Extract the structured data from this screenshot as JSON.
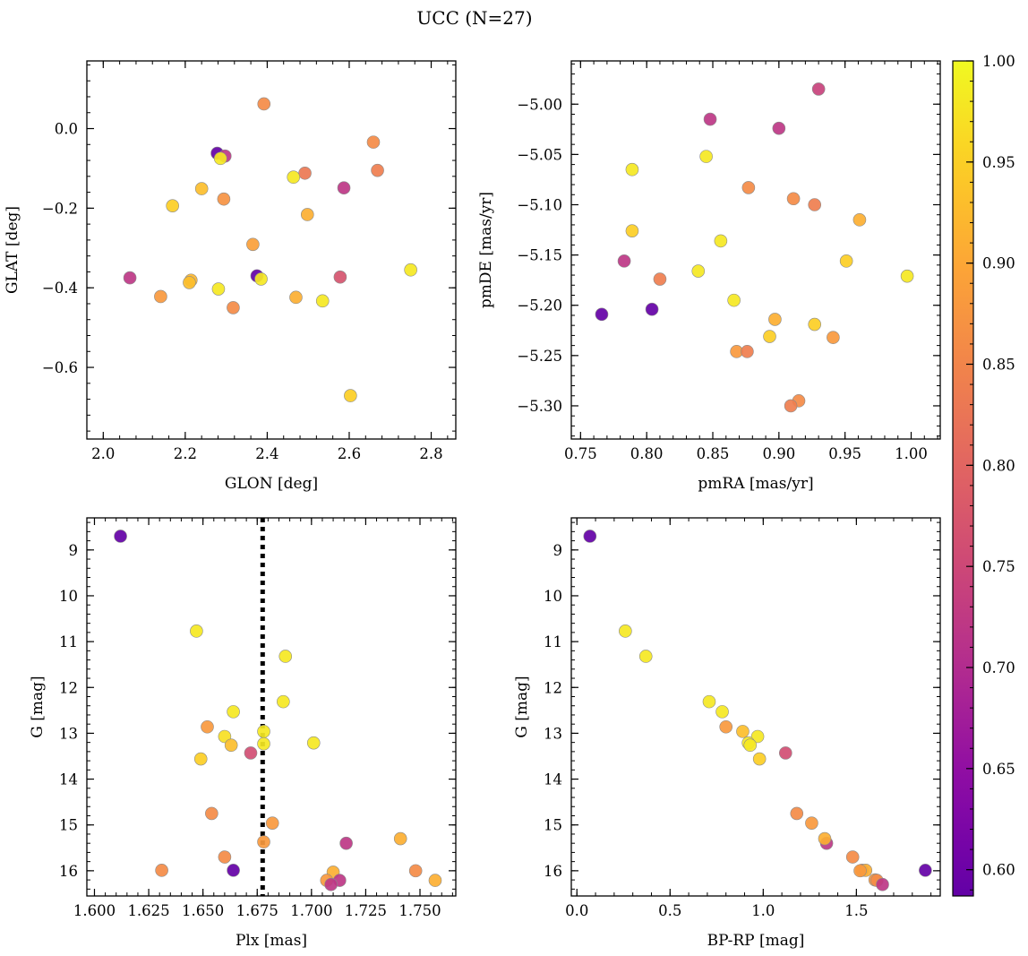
{
  "title": "UCC (N=27)",
  "chart_data": [
    {
      "type": "scatter",
      "xlabel": "GLON [deg]",
      "ylabel": "GLAT [deg]",
      "xlim": [
        1.96,
        2.86
      ],
      "ylim": [
        -0.78,
        0.17
      ],
      "xticks": [
        2.0,
        2.2,
        2.4,
        2.6,
        2.8
      ],
      "xtick_labels": [
        "2.0",
        "2.2",
        "2.4",
        "2.6",
        "2.8"
      ],
      "yticks": [
        0.0,
        -0.2,
        -0.4,
        -0.6
      ],
      "ytick_labels": [
        "0.0",
        "−0.2",
        "−0.4",
        "−0.6"
      ],
      "y_inverted": false,
      "points": [
        {
          "x": 2.392,
          "y": 0.062,
          "c": 0.86
        },
        {
          "x": 2.659,
          "y": -0.034,
          "c": 0.86
        },
        {
          "x": 2.278,
          "y": -0.062,
          "c": 0.59
        },
        {
          "x": 2.297,
          "y": -0.069,
          "c": 0.72
        },
        {
          "x": 2.286,
          "y": -0.075,
          "c": 0.98
        },
        {
          "x": 2.669,
          "y": -0.105,
          "c": 0.84
        },
        {
          "x": 2.492,
          "y": -0.112,
          "c": 0.83
        },
        {
          "x": 2.464,
          "y": -0.122,
          "c": 0.98
        },
        {
          "x": 2.587,
          "y": -0.149,
          "c": 0.72
        },
        {
          "x": 2.24,
          "y": -0.151,
          "c": 0.93
        },
        {
          "x": 2.294,
          "y": -0.177,
          "c": 0.87
        },
        {
          "x": 2.169,
          "y": -0.194,
          "c": 0.95
        },
        {
          "x": 2.498,
          "y": -0.216,
          "c": 0.91
        },
        {
          "x": 2.365,
          "y": -0.291,
          "c": 0.89
        },
        {
          "x": 2.75,
          "y": -0.355,
          "c": 0.98
        },
        {
          "x": 2.375,
          "y": -0.37,
          "c": 0.59
        },
        {
          "x": 2.065,
          "y": -0.375,
          "c": 0.72
        },
        {
          "x": 2.578,
          "y": -0.373,
          "c": 0.77
        },
        {
          "x": 2.385,
          "y": -0.378,
          "c": 0.98
        },
        {
          "x": 2.214,
          "y": -0.381,
          "c": 0.92
        },
        {
          "x": 2.21,
          "y": -0.387,
          "c": 0.93
        },
        {
          "x": 2.281,
          "y": -0.403,
          "c": 0.98
        },
        {
          "x": 2.14,
          "y": -0.422,
          "c": 0.88
        },
        {
          "x": 2.47,
          "y": -0.424,
          "c": 0.91
        },
        {
          "x": 2.535,
          "y": -0.433,
          "c": 0.98
        },
        {
          "x": 2.317,
          "y": -0.45,
          "c": 0.86
        },
        {
          "x": 2.603,
          "y": -0.671,
          "c": 0.95
        }
      ]
    },
    {
      "type": "scatter",
      "xlabel": "pmRA [mas/yr]",
      "ylabel": "pmDE [mas/yr]",
      "xlim": [
        0.743,
        1.022
      ],
      "ylim": [
        -5.333,
        -4.957
      ],
      "xticks": [
        0.75,
        0.8,
        0.85,
        0.9,
        0.95,
        1.0
      ],
      "xtick_labels": [
        "0.75",
        "0.80",
        "0.85",
        "0.90",
        "0.95",
        "1.00"
      ],
      "yticks": [
        -5.0,
        -5.05,
        -5.1,
        -5.15,
        -5.2,
        -5.25,
        -5.3
      ],
      "ytick_labels": [
        "−5.00",
        "−5.05",
        "−5.10",
        "−5.15",
        "−5.20",
        "−5.25",
        "−5.30"
      ],
      "y_inverted": false,
      "points": [
        {
          "x": 0.93,
          "y": -4.985,
          "c": 0.74
        },
        {
          "x": 0.848,
          "y": -5.015,
          "c": 0.72
        },
        {
          "x": 0.9,
          "y": -5.024,
          "c": 0.72
        },
        {
          "x": 0.845,
          "y": -5.052,
          "c": 0.98
        },
        {
          "x": 0.789,
          "y": -5.065,
          "c": 0.98
        },
        {
          "x": 0.877,
          "y": -5.083,
          "c": 0.86
        },
        {
          "x": 0.911,
          "y": -5.094,
          "c": 0.86
        },
        {
          "x": 0.927,
          "y": -5.1,
          "c": 0.84
        },
        {
          "x": 0.961,
          "y": -5.115,
          "c": 0.91
        },
        {
          "x": 0.789,
          "y": -5.126,
          "c": 0.95
        },
        {
          "x": 0.856,
          "y": -5.136,
          "c": 0.98
        },
        {
          "x": 0.783,
          "y": -5.156,
          "c": 0.72
        },
        {
          "x": 0.951,
          "y": -5.156,
          "c": 0.95
        },
        {
          "x": 0.839,
          "y": -5.166,
          "c": 0.98
        },
        {
          "x": 0.997,
          "y": -5.171,
          "c": 0.98
        },
        {
          "x": 0.81,
          "y": -5.174,
          "c": 0.84
        },
        {
          "x": 0.866,
          "y": -5.195,
          "c": 0.98
        },
        {
          "x": 0.804,
          "y": -5.204,
          "c": 0.59
        },
        {
          "x": 0.766,
          "y": -5.209,
          "c": 0.59
        },
        {
          "x": 0.897,
          "y": -5.214,
          "c": 0.91
        },
        {
          "x": 0.927,
          "y": -5.219,
          "c": 0.95
        },
        {
          "x": 0.941,
          "y": -5.232,
          "c": 0.88
        },
        {
          "x": 0.893,
          "y": -5.231,
          "c": 0.95
        },
        {
          "x": 0.868,
          "y": -5.246,
          "c": 0.88
        },
        {
          "x": 0.876,
          "y": -5.246,
          "c": 0.84
        },
        {
          "x": 0.915,
          "y": -5.295,
          "c": 0.86
        },
        {
          "x": 0.909,
          "y": -5.3,
          "c": 0.84
        }
      ]
    },
    {
      "type": "scatter",
      "xlabel": "Plx [mas]",
      "ylabel": "G [mag]",
      "xlim": [
        1.5965,
        1.7665
      ],
      "ylim": [
        16.55,
        8.3
      ],
      "xticks": [
        1.6,
        1.625,
        1.65,
        1.675,
        1.7,
        1.725,
        1.75
      ],
      "xtick_labels": [
        "1.600",
        "1.625",
        "1.650",
        "1.675",
        "1.700",
        "1.725",
        "1.750"
      ],
      "yticks": [
        9,
        10,
        11,
        12,
        13,
        14,
        15,
        16
      ],
      "ytick_labels": [
        "9",
        "10",
        "11",
        "12",
        "13",
        "14",
        "15",
        "16"
      ],
      "y_inverted": true,
      "vline": 1.6775,
      "points": [
        {
          "x": 1.612,
          "y": 8.7,
          "c": 0.59
        },
        {
          "x": 1.647,
          "y": 10.77,
          "c": 0.98
        },
        {
          "x": 1.688,
          "y": 11.32,
          "c": 0.98
        },
        {
          "x": 1.687,
          "y": 12.31,
          "c": 0.98
        },
        {
          "x": 1.664,
          "y": 12.53,
          "c": 0.98
        },
        {
          "x": 1.652,
          "y": 12.86,
          "c": 0.88
        },
        {
          "x": 1.678,
          "y": 12.96,
          "c": 0.98
        },
        {
          "x": 1.66,
          "y": 13.07,
          "c": 0.97
        },
        {
          "x": 1.701,
          "y": 13.21,
          "c": 0.98
        },
        {
          "x": 1.663,
          "y": 13.26,
          "c": 0.93
        },
        {
          "x": 1.678,
          "y": 13.23,
          "c": 0.98
        },
        {
          "x": 1.672,
          "y": 13.43,
          "c": 0.76
        },
        {
          "x": 1.649,
          "y": 13.56,
          "c": 0.95
        },
        {
          "x": 1.654,
          "y": 14.75,
          "c": 0.86
        },
        {
          "x": 1.682,
          "y": 14.96,
          "c": 0.88
        },
        {
          "x": 1.678,
          "y": 15.37,
          "c": 0.88
        },
        {
          "x": 1.716,
          "y": 15.4,
          "c": 0.72
        },
        {
          "x": 1.741,
          "y": 15.3,
          "c": 0.91
        },
        {
          "x": 1.66,
          "y": 15.7,
          "c": 0.86
        },
        {
          "x": 1.664,
          "y": 15.99,
          "c": 0.59
        },
        {
          "x": 1.631,
          "y": 15.99,
          "c": 0.86
        },
        {
          "x": 1.748,
          "y": 16.0,
          "c": 0.86
        },
        {
          "x": 1.71,
          "y": 16.03,
          "c": 0.91
        },
        {
          "x": 1.707,
          "y": 16.21,
          "c": 0.88
        },
        {
          "x": 1.757,
          "y": 16.21,
          "c": 0.91
        },
        {
          "x": 1.713,
          "y": 16.21,
          "c": 0.72
        },
        {
          "x": 1.709,
          "y": 16.3,
          "c": 0.72
        }
      ]
    },
    {
      "type": "scatter",
      "xlabel": "BP-RP [mag]",
      "ylabel": "G [mag]",
      "xlim": [
        -0.03,
        1.95
      ],
      "ylim": [
        16.55,
        8.3
      ],
      "xticks": [
        0.0,
        0.5,
        1.0,
        1.5
      ],
      "xtick_labels": [
        "0.0",
        "0.5",
        "1.0",
        "1.5"
      ],
      "yticks": [
        9,
        10,
        11,
        12,
        13,
        14,
        15,
        16
      ],
      "ytick_labels": [
        "9",
        "10",
        "11",
        "12",
        "13",
        "14",
        "15",
        "16"
      ],
      "y_inverted": true,
      "points": [
        {
          "x": 0.07,
          "y": 8.7,
          "c": 0.59
        },
        {
          "x": 0.26,
          "y": 10.77,
          "c": 0.98
        },
        {
          "x": 0.37,
          "y": 11.32,
          "c": 0.98
        },
        {
          "x": 0.71,
          "y": 12.31,
          "c": 0.98
        },
        {
          "x": 0.78,
          "y": 12.53,
          "c": 0.98
        },
        {
          "x": 0.8,
          "y": 12.86,
          "c": 0.88
        },
        {
          "x": 0.89,
          "y": 12.96,
          "c": 0.93
        },
        {
          "x": 0.97,
          "y": 13.07,
          "c": 0.98
        },
        {
          "x": 0.92,
          "y": 13.21,
          "c": 0.98
        },
        {
          "x": 0.93,
          "y": 13.26,
          "c": 0.98
        },
        {
          "x": 1.12,
          "y": 13.43,
          "c": 0.76
        },
        {
          "x": 0.98,
          "y": 13.56,
          "c": 0.95
        },
        {
          "x": 1.18,
          "y": 14.75,
          "c": 0.86
        },
        {
          "x": 1.26,
          "y": 14.96,
          "c": 0.88
        },
        {
          "x": 1.34,
          "y": 15.4,
          "c": 0.72
        },
        {
          "x": 1.33,
          "y": 15.3,
          "c": 0.91
        },
        {
          "x": 1.48,
          "y": 15.7,
          "c": 0.86
        },
        {
          "x": 1.53,
          "y": 15.99,
          "c": 0.86
        },
        {
          "x": 1.55,
          "y": 15.99,
          "c": 0.91
        },
        {
          "x": 1.52,
          "y": 16.0,
          "c": 0.88
        },
        {
          "x": 1.6,
          "y": 16.2,
          "c": 0.88
        },
        {
          "x": 1.61,
          "y": 16.21,
          "c": 0.86
        },
        {
          "x": 1.64,
          "y": 16.3,
          "c": 0.72
        },
        {
          "x": 1.87,
          "y": 15.99,
          "c": 0.59
        }
      ]
    }
  ],
  "colorbar": {
    "min": 0.587,
    "max": 1.0,
    "colormap": "plasma",
    "ticks": [
      0.6,
      0.65,
      0.7,
      0.75,
      0.8,
      0.85,
      0.9,
      0.95,
      1.0
    ],
    "tick_labels": [
      "0.60",
      "0.65",
      "0.70",
      "0.75",
      "0.80",
      "0.85",
      "0.90",
      "0.95",
      "1.00"
    ]
  },
  "vline_color": "#000000",
  "marker_edge_color": "#8a8a8a"
}
